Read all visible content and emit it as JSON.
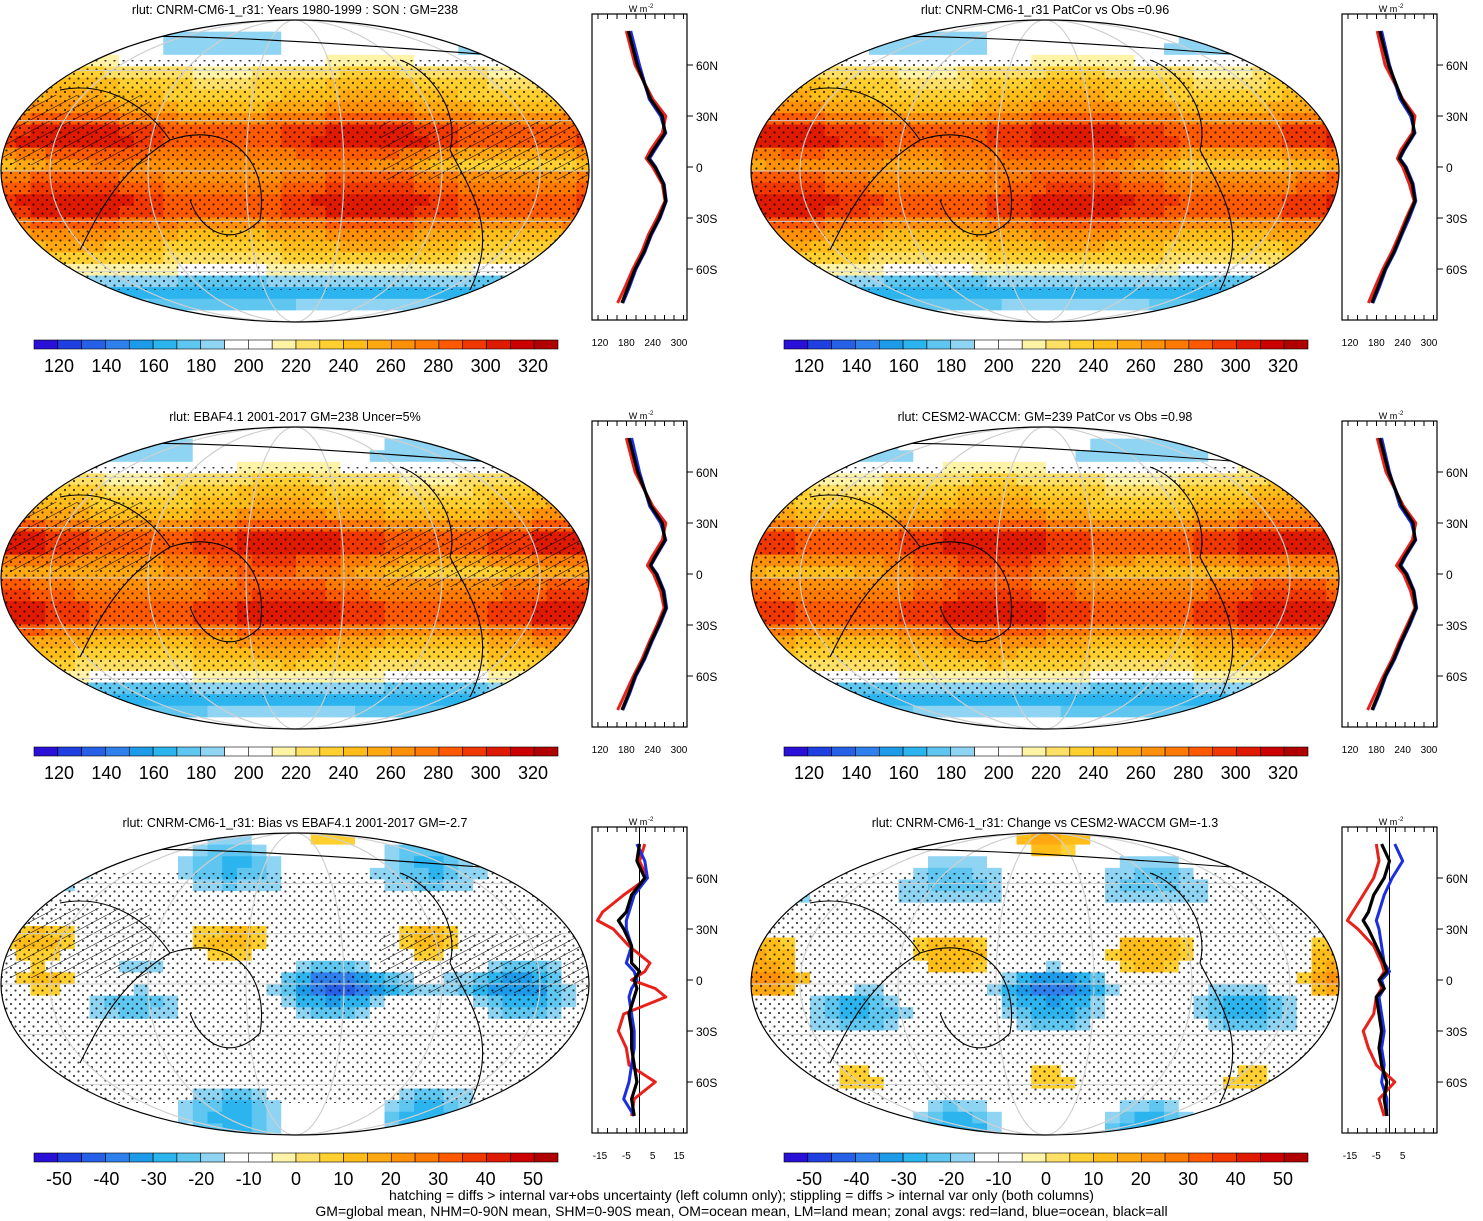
{
  "panels": [
    {
      "title": "rlut: CNRM-CM6-1_r31: Years 1980-1999 : SON : GM=238",
      "kind": "abs",
      "hatch": true
    },
    {
      "title": "rlut: CNRM-CM6-1_r31 PatCor vs Obs =0.96",
      "kind": "abs",
      "hatch": false
    },
    {
      "title": "rlut: EBAF4.1 2001-2017 GM=238 Uncer=5%",
      "kind": "abs",
      "hatch": true
    },
    {
      "title": "rlut: CESM2-WACCM: GM=239 PatCor vs Obs =0.98",
      "kind": "abs",
      "hatch": false
    },
    {
      "title": "rlut: CNRM-CM6-1_r31: Bias vs EBAF4.1 2001-2017  GM=-2.7",
      "kind": "diff",
      "hatch": true
    },
    {
      "title": "rlut: CNRM-CM6-1_r31: Change vs CESM2-WACCM GM=-1.3",
      "kind": "diff",
      "hatch": false
    }
  ],
  "colorbars": {
    "abs": {
      "labels": [
        "120",
        "140",
        "160",
        "180",
        "200",
        "220",
        "240",
        "260",
        "280",
        "300",
        "320"
      ]
    },
    "diff": {
      "labels": [
        "-50",
        "-40",
        "-30",
        "-20",
        "-10",
        "0",
        "10",
        "20",
        "30",
        "40",
        "50"
      ]
    },
    "colors": [
      "#2a0fd6",
      "#1f3fe0",
      "#2660e6",
      "#2f80ec",
      "#1e9be8",
      "#2cb4ee",
      "#5fc6f0",
      "#8fd5f3",
      "#ffffff",
      "#ffffff",
      "#fff3a8",
      "#ffe066",
      "#ffd030",
      "#ffbd1a",
      "#ffa812",
      "#ff9008",
      "#ff7a00",
      "#ff5a00",
      "#f03800",
      "#e01a00",
      "#cc0000",
      "#b00000"
    ]
  },
  "zonal_axes": {
    "lat_labels": [
      "60N",
      "30N",
      "0",
      "30S",
      "60S"
    ],
    "unit_label": "W m",
    "unit_sup": "-2",
    "abs_x_labels": [
      "120",
      "180",
      "240",
      "300"
    ],
    "bias_x_labels": [
      "-15",
      "-5",
      "5",
      "15"
    ],
    "change_x_labels": [
      "-15",
      "-5",
      "5"
    ]
  },
  "chart_data": [
    {
      "type": "heatmap",
      "title": "rlut: CNRM-CM6-1_r31: Years 1980-1999 : SON : GM=238",
      "variable": "rlut",
      "range": [
        110,
        330
      ],
      "zonal_mean": {
        "lat": [
          80,
          60,
          40,
          30,
          20,
          10,
          5,
          0,
          -10,
          -20,
          -30,
          -40,
          -50,
          -60,
          -70,
          -80
        ],
        "all": [
          185,
          205,
          235,
          262,
          268,
          242,
          230,
          245,
          265,
          270,
          255,
          235,
          220,
          200,
          185,
          170
        ],
        "land": [
          180,
          200,
          240,
          270,
          262,
          235,
          225,
          240,
          262,
          268,
          250,
          230,
          215,
          195,
          178,
          160
        ],
        "ocean": [
          190,
          210,
          232,
          258,
          270,
          245,
          233,
          247,
          266,
          271,
          257,
          237,
          222,
          202,
          188,
          172
        ]
      }
    },
    {
      "type": "heatmap",
      "title": "rlut: CNRM-CM6-1_r31 PatCor vs Obs =0.96",
      "variable": "rlut",
      "range": [
        110,
        330
      ],
      "zonal_mean": {
        "lat": [
          80,
          60,
          40,
          30,
          20,
          10,
          5,
          0,
          -10,
          -20,
          -30,
          -40,
          -50,
          -60,
          -70,
          -80
        ],
        "all": [
          188,
          208,
          238,
          262,
          266,
          242,
          232,
          246,
          262,
          268,
          252,
          236,
          220,
          200,
          185,
          170
        ],
        "land": [
          182,
          200,
          240,
          268,
          262,
          236,
          228,
          240,
          255,
          266,
          248,
          232,
          215,
          195,
          178,
          162
        ],
        "ocean": [
          192,
          210,
          234,
          258,
          268,
          244,
          234,
          248,
          264,
          270,
          255,
          238,
          222,
          202,
          188,
          172
        ]
      }
    },
    {
      "type": "heatmap",
      "title": "rlut: EBAF4.1 2001-2017 GM=238 Uncer=5%",
      "variable": "rlut",
      "range": [
        110,
        330
      ],
      "zonal_mean": {
        "lat": [
          80,
          60,
          40,
          30,
          20,
          10,
          5,
          0,
          -10,
          -20,
          -30,
          -40,
          -50,
          -60,
          -70,
          -80
        ],
        "all": [
          186,
          206,
          236,
          262,
          268,
          245,
          235,
          248,
          264,
          270,
          254,
          236,
          220,
          200,
          186,
          170
        ],
        "land": [
          180,
          200,
          240,
          270,
          262,
          238,
          228,
          242,
          258,
          266,
          250,
          232,
          216,
          196,
          178,
          160
        ],
        "ocean": [
          192,
          210,
          233,
          258,
          270,
          247,
          236,
          250,
          266,
          272,
          256,
          238,
          222,
          202,
          188,
          172
        ]
      }
    },
    {
      "type": "heatmap",
      "title": "rlut: CESM2-WACCM: GM=239 PatCor vs Obs =0.98",
      "variable": "rlut",
      "range": [
        110,
        330
      ],
      "zonal_mean": {
        "lat": [
          80,
          60,
          40,
          30,
          20,
          10,
          5,
          0,
          -10,
          -20,
          -30,
          -40,
          -50,
          -60,
          -70,
          -80
        ],
        "all": [
          188,
          208,
          238,
          264,
          268,
          244,
          234,
          248,
          265,
          270,
          254,
          236,
          220,
          200,
          186,
          170
        ],
        "land": [
          182,
          202,
          242,
          270,
          262,
          238,
          226,
          242,
          258,
          268,
          250,
          232,
          216,
          196,
          178,
          160
        ],
        "ocean": [
          192,
          210,
          234,
          260,
          270,
          246,
          236,
          250,
          266,
          272,
          256,
          238,
          222,
          202,
          188,
          172
        ]
      }
    },
    {
      "type": "heatmap",
      "title": "rlut: CNRM-CM6-1_r31: Bias vs EBAF4.1 2001-2017  GM=-2.7",
      "variable": "rlut",
      "range": [
        -55,
        55
      ],
      "zonal_mean": {
        "lat": [
          80,
          70,
          60,
          50,
          40,
          35,
          30,
          20,
          10,
          5,
          0,
          -5,
          -10,
          -20,
          -30,
          -40,
          -50,
          -60,
          -70,
          -80
        ],
        "all": [
          0,
          -1,
          2,
          -3,
          -5,
          -8,
          -6,
          -3,
          -3,
          0,
          -2,
          -1,
          -2,
          -4,
          -3,
          -3,
          -2,
          -1,
          -3,
          -2
        ],
        "land": [
          2,
          0,
          3,
          -6,
          -14,
          -16,
          -10,
          -4,
          4,
          2,
          -3,
          6,
          10,
          -6,
          -8,
          -5,
          -4,
          6,
          -2,
          -3
        ],
        "ocean": [
          -1,
          2,
          3,
          -2,
          -4,
          -5,
          -5,
          -3,
          -5,
          -2,
          -1,
          -3,
          -4,
          -3,
          -2,
          -2,
          -3,
          -4,
          -6,
          -2
        ]
      }
    },
    {
      "type": "heatmap",
      "title": "rlut: CNRM-CM6-1_r31: Change vs CESM2-WACCM GM=-1.3",
      "variable": "rlut",
      "range": [
        -55,
        55
      ],
      "zonal_mean": {
        "lat": [
          80,
          70,
          60,
          50,
          40,
          35,
          30,
          20,
          10,
          5,
          0,
          -5,
          -10,
          -20,
          -30,
          -40,
          -50,
          -60,
          -70,
          -80
        ],
        "all": [
          -3,
          0,
          -2,
          -6,
          -8,
          -10,
          -8,
          -5,
          -2,
          -1,
          -4,
          -2,
          -5,
          -4,
          -3,
          -4,
          -3,
          -1,
          -2,
          -1
        ],
        "land": [
          -5,
          -4,
          -6,
          -10,
          -14,
          -16,
          -12,
          -6,
          -3,
          -2,
          -4,
          -3,
          -5,
          -6,
          -10,
          -8,
          -5,
          2,
          -4,
          -2
        ],
        "ocean": [
          2,
          5,
          1,
          -2,
          -4,
          -5,
          -4,
          -3,
          -2,
          0,
          -3,
          -2,
          -4,
          -3,
          -2,
          -3,
          -2,
          -3,
          -1,
          -1
        ]
      }
    }
  ],
  "footer": {
    "line1": "hatching = diffs > internal var+obs uncertainty (left column only); stippling = diffs > internal var only (both columns)",
    "line2": "GM=global mean, NHM=0-90N mean, SHM=0-90S mean, OM=ocean mean, LM=land mean; zonal avgs: red=land, blue=ocean, black=all"
  }
}
